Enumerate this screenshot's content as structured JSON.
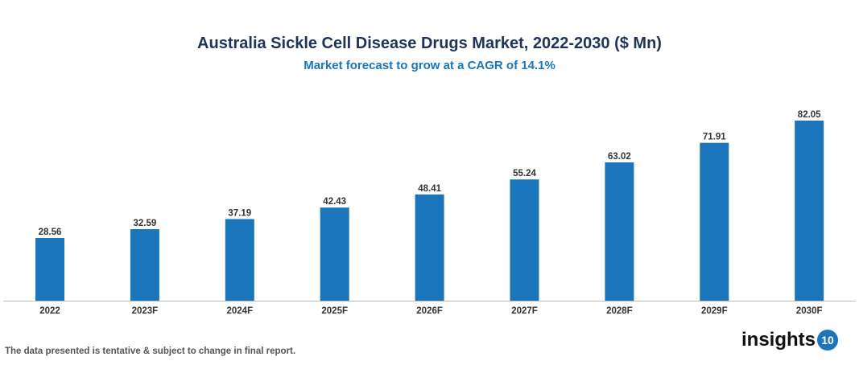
{
  "chart_data": {
    "type": "bar",
    "title": "Australia Sickle Cell Disease Drugs Market, 2022-2030 ($ Mn)",
    "subtitle": "Market forecast to grow at a CAGR of 14.1%",
    "categories": [
      "2022",
      "2023F",
      "2024F",
      "2025F",
      "2026F",
      "2027F",
      "2028F",
      "2029F",
      "2030F"
    ],
    "values": [
      28.56,
      32.59,
      37.19,
      42.43,
      48.41,
      55.24,
      63.02,
      71.91,
      82.05
    ],
    "xlabel": "",
    "ylabel": "",
    "ylim": [
      0,
      82.05
    ],
    "grid": false,
    "bar_color": "#1a75bb"
  },
  "footer": {
    "note": "The data presented is tentative & subject to change in final report.",
    "logo_text": "insights",
    "logo_badge": "10"
  }
}
